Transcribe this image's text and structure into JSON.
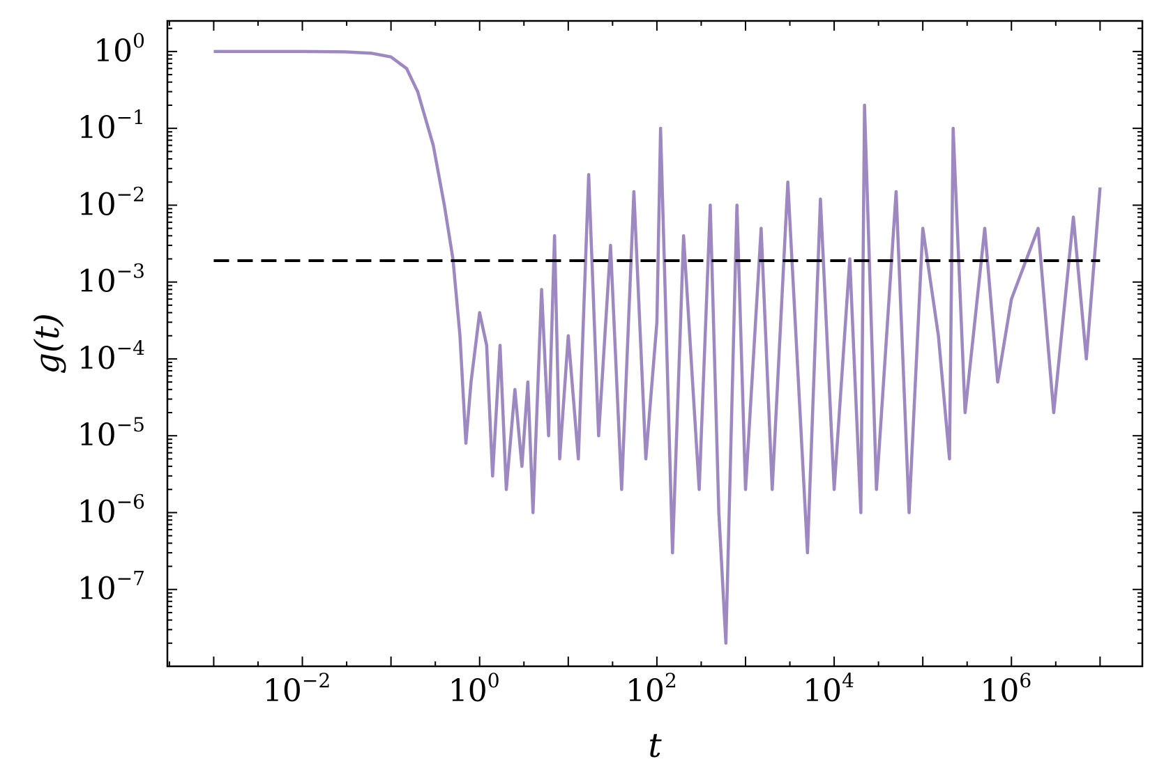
{
  "chart_data": {
    "type": "line",
    "xlabel": "t",
    "ylabel": "g(t)",
    "xscale": "log",
    "yscale": "log",
    "xlim": [
      0.0003,
      30000000
    ],
    "ylim": [
      1e-08,
      2.5
    ],
    "grid": false,
    "x_ticks": [
      {
        "base": "10",
        "exp": "−2",
        "value": 0.01
      },
      {
        "base": "10",
        "exp": "0",
        "value": 1
      },
      {
        "base": "10",
        "exp": "2",
        "value": 100
      },
      {
        "base": "10",
        "exp": "4",
        "value": 10000
      },
      {
        "base": "10",
        "exp": "6",
        "value": 1000000
      }
    ],
    "y_ticks": [
      {
        "base": "10",
        "exp": "0",
        "value": 1
      },
      {
        "base": "10",
        "exp": "−1",
        "value": 0.1
      },
      {
        "base": "10",
        "exp": "−2",
        "value": 0.01
      },
      {
        "base": "10",
        "exp": "−3",
        "value": 0.001
      },
      {
        "base": "10",
        "exp": "−4",
        "value": 0.0001
      },
      {
        "base": "10",
        "exp": "−5",
        "value": 1e-05
      },
      {
        "base": "10",
        "exp": "−6",
        "value": 1e-06
      },
      {
        "base": "10",
        "exp": "−7",
        "value": 1e-07
      }
    ],
    "series": [
      {
        "color": "#9e88c2",
        "style": "solid",
        "x": [
          0.001,
          0.003,
          0.01,
          0.03,
          0.06,
          0.1,
          0.15,
          0.2,
          0.3,
          0.4,
          0.5,
          0.6,
          0.7,
          0.8,
          1.0,
          1.2,
          1.4,
          1.7,
          2.0,
          2.5,
          3.0,
          3.5,
          4.0,
          5.0,
          6.0,
          7.0,
          8.0,
          10,
          13,
          17,
          22,
          30,
          40,
          55,
          75,
          100,
          110,
          150,
          200,
          300,
          400,
          500,
          600,
          800,
          1000,
          1500,
          2000,
          3000,
          5000,
          7000,
          10000,
          15000,
          20000,
          22000,
          30000,
          50000,
          70000,
          100000,
          150000,
          200000,
          220000,
          300000,
          500000,
          700000,
          1000000,
          2000000,
          3000000,
          5000000,
          7000000,
          10000000
        ],
        "y": [
          1.0,
          1.0,
          1.0,
          0.99,
          0.95,
          0.85,
          0.6,
          0.3,
          0.06,
          0.01,
          0.002,
          0.0002,
          8e-06,
          5e-05,
          0.0004,
          0.00015,
          3e-06,
          0.00015,
          2e-06,
          4e-05,
          4e-06,
          5e-05,
          1e-06,
          0.0008,
          1e-05,
          0.004,
          5e-06,
          0.0002,
          5e-06,
          0.025,
          1e-05,
          0.003,
          2e-06,
          0.015,
          5e-06,
          0.0003,
          0.1,
          3e-07,
          0.004,
          2e-06,
          0.01,
          1e-06,
          2e-08,
          0.01,
          2e-06,
          0.005,
          2e-06,
          0.02,
          3e-07,
          0.012,
          2e-06,
          0.002,
          1e-06,
          0.2,
          2e-06,
          0.015,
          1e-06,
          0.005,
          0.0002,
          5e-06,
          0.1,
          2e-05,
          0.005,
          5e-05,
          0.0006,
          0.005,
          2e-05,
          0.007,
          0.0001,
          0.017
        ]
      },
      {
        "color": "#000000",
        "style": "dashed",
        "x": [
          0.001,
          10000000
        ],
        "y": [
          0.0019,
          0.0019
        ]
      }
    ]
  }
}
